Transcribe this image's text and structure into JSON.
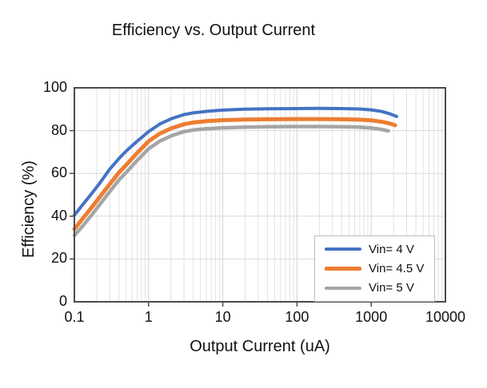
{
  "chart_data": {
    "type": "line",
    "title": "Efficiency vs. Output Current",
    "xlabel": "Output Current (uA)",
    "ylabel": "Efficiency (%)",
    "x_scale": "log",
    "xlim": [
      0.1,
      10000
    ],
    "ylim": [
      0,
      100
    ],
    "x_ticks": [
      0.1,
      1,
      10,
      100,
      1000,
      10000
    ],
    "x_tick_labels": [
      "0.1",
      "1",
      "10",
      "100",
      "1000",
      "10000"
    ],
    "y_ticks": [
      0,
      20,
      40,
      60,
      80,
      100
    ],
    "grid": true,
    "legend_position": "inside-bottom-right",
    "series": [
      {
        "name": "Vin= 4 V",
        "color": "#4472C4",
        "points": [
          [
            0.1,
            40.5
          ],
          [
            0.13,
            45.5
          ],
          [
            0.17,
            50.5
          ],
          [
            0.22,
            55.5
          ],
          [
            0.3,
            62
          ],
          [
            0.4,
            67
          ],
          [
            0.5,
            70.5
          ],
          [
            0.7,
            75
          ],
          [
            1,
            79.5
          ],
          [
            1.4,
            83
          ],
          [
            2,
            85.5
          ],
          [
            3,
            87.5
          ],
          [
            4,
            88.3
          ],
          [
            6,
            89
          ],
          [
            10,
            89.6
          ],
          [
            20,
            90
          ],
          [
            40,
            90.2
          ],
          [
            100,
            90.3
          ],
          [
            200,
            90.4
          ],
          [
            400,
            90.3
          ],
          [
            700,
            90.1
          ],
          [
            1000,
            89.7
          ],
          [
            1400,
            88.9
          ],
          [
            1800,
            87.8
          ],
          [
            2200,
            86.6
          ]
        ]
      },
      {
        "name": "Vin= 4.5 V",
        "color": "#ED7D31",
        "points": [
          [
            0.1,
            34
          ],
          [
            0.13,
            39
          ],
          [
            0.17,
            44
          ],
          [
            0.22,
            49
          ],
          [
            0.3,
            55
          ],
          [
            0.4,
            60.5
          ],
          [
            0.5,
            64
          ],
          [
            0.7,
            69.5
          ],
          [
            1,
            75
          ],
          [
            1.4,
            78.5
          ],
          [
            2,
            81
          ],
          [
            3,
            83
          ],
          [
            4,
            83.8
          ],
          [
            6,
            84.4
          ],
          [
            10,
            84.9
          ],
          [
            20,
            85.2
          ],
          [
            40,
            85.3
          ],
          [
            100,
            85.4
          ],
          [
            200,
            85.4
          ],
          [
            400,
            85.3
          ],
          [
            700,
            85.1
          ],
          [
            1000,
            84.8
          ],
          [
            1400,
            84.1
          ],
          [
            1800,
            83.3
          ],
          [
            2100,
            82.5
          ]
        ]
      },
      {
        "name": "Vin= 5 V",
        "color": "#A5A5A5",
        "points": [
          [
            0.1,
            31
          ],
          [
            0.13,
            35.5
          ],
          [
            0.17,
            40.5
          ],
          [
            0.22,
            45.5
          ],
          [
            0.3,
            51.5
          ],
          [
            0.4,
            57
          ],
          [
            0.5,
            60.5
          ],
          [
            0.7,
            66
          ],
          [
            1,
            71.5
          ],
          [
            1.4,
            75
          ],
          [
            2,
            77.5
          ],
          [
            3,
            79.5
          ],
          [
            4,
            80.3
          ],
          [
            6,
            80.9
          ],
          [
            10,
            81.3
          ],
          [
            20,
            81.6
          ],
          [
            40,
            81.8
          ],
          [
            100,
            81.9
          ],
          [
            200,
            81.9
          ],
          [
            400,
            81.8
          ],
          [
            700,
            81.6
          ],
          [
            1000,
            81.2
          ],
          [
            1300,
            80.7
          ],
          [
            1700,
            79.9
          ]
        ]
      }
    ]
  }
}
